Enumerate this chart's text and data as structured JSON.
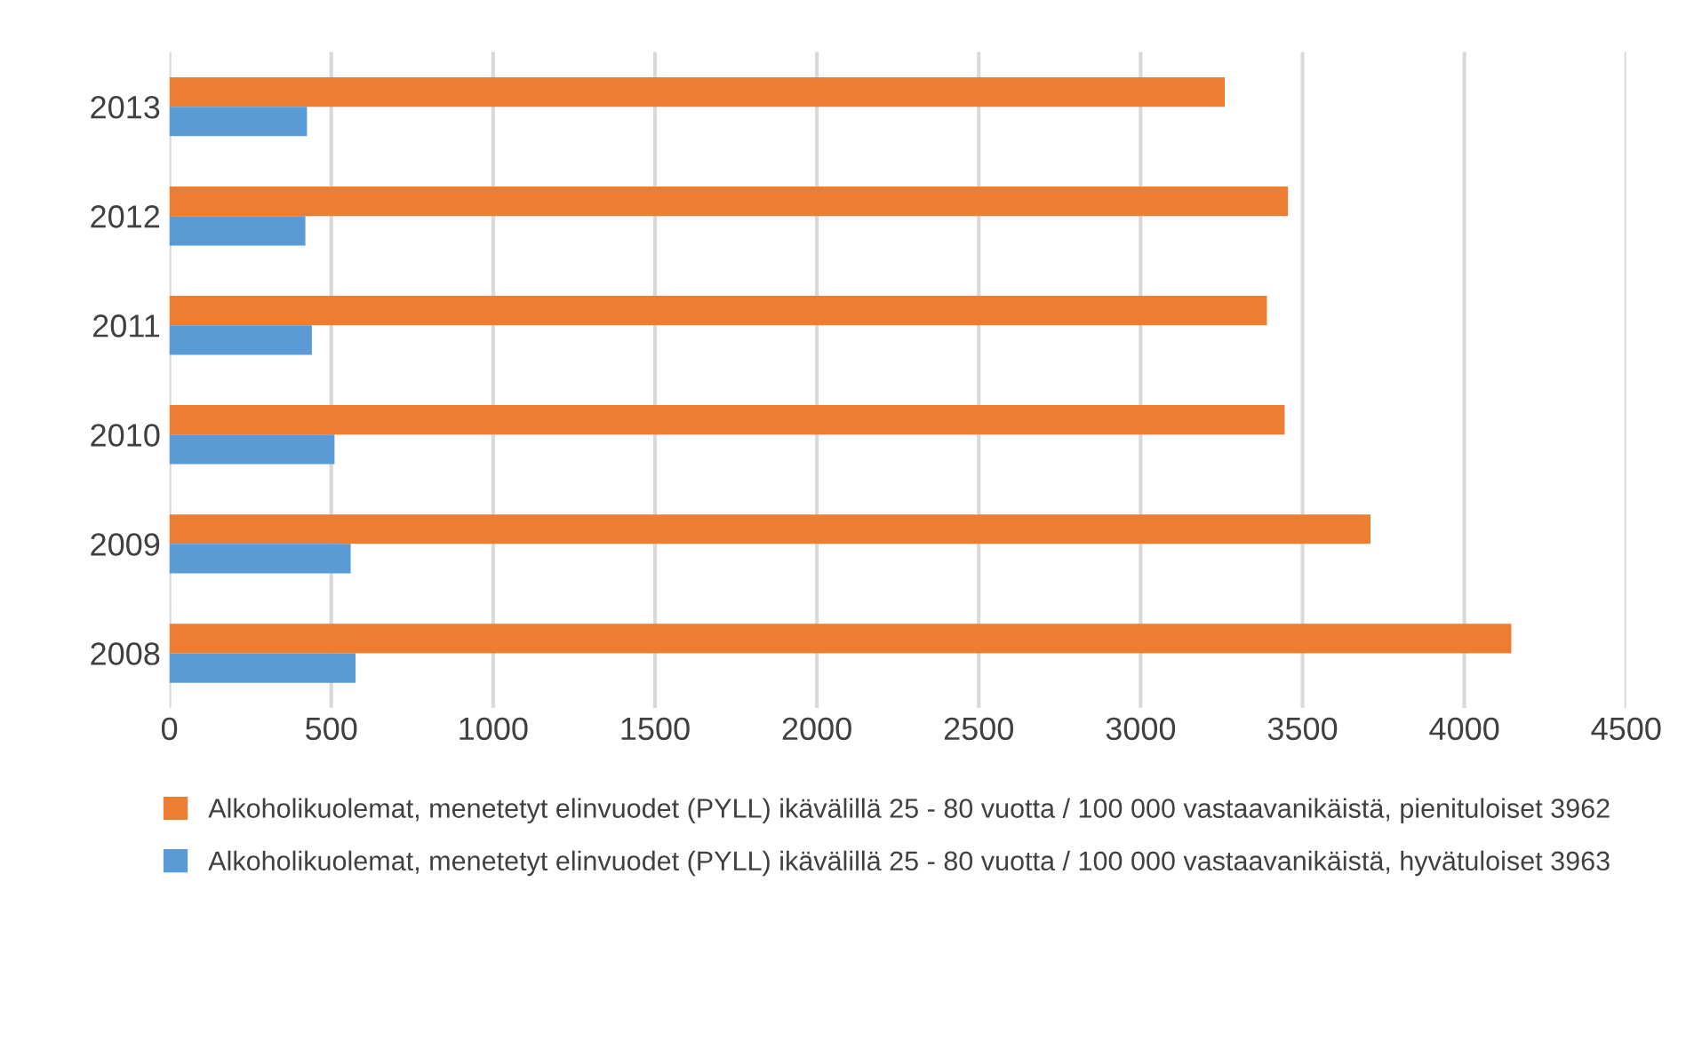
{
  "chart_data": {
    "type": "bar",
    "orientation": "horizontal",
    "categories": [
      "2013",
      "2012",
      "2011",
      "2010",
      "2009",
      "2008"
    ],
    "series": [
      {
        "name": "Alkoholikuolemat, menetetyt elinvuodet (PYLL) ikävälillä 25 - 80 vuotta / 100 000 vastaavanikäistä, pienituloiset 3962",
        "color": "#ed7d31",
        "values": [
          3260,
          3455,
          3390,
          3445,
          3710,
          4145
        ]
      },
      {
        "name": "Alkoholikuolemat, menetetyt elinvuodet (PYLL) ikävälillä 25 - 80 vuotta / 100 000 vastaavanikäistä, hyvätuloiset 3963",
        "color": "#5b9bd5",
        "values": [
          425,
          420,
          440,
          510,
          560,
          575
        ]
      }
    ],
    "xlim": [
      0,
      4500
    ],
    "xticks": [
      0,
      500,
      1000,
      1500,
      2000,
      2500,
      3000,
      3500,
      4000,
      4500
    ],
    "grid": "x",
    "legend": "bottom"
  }
}
